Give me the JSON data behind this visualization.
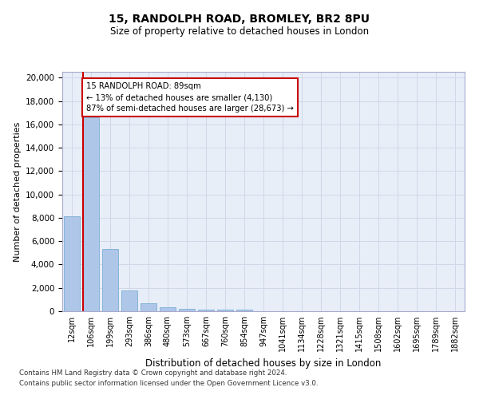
{
  "title_line1": "15, RANDOLPH ROAD, BROMLEY, BR2 8PU",
  "title_line2": "Size of property relative to detached houses in London",
  "xlabel": "Distribution of detached houses by size in London",
  "ylabel": "Number of detached properties",
  "categories": [
    "12sqm",
    "106sqm",
    "199sqm",
    "293sqm",
    "386sqm",
    "480sqm",
    "573sqm",
    "667sqm",
    "760sqm",
    "854sqm",
    "947sqm",
    "1041sqm",
    "1134sqm",
    "1228sqm",
    "1321sqm",
    "1415sqm",
    "1508sqm",
    "1602sqm",
    "1695sqm",
    "1789sqm",
    "1882sqm"
  ],
  "values": [
    8100,
    16600,
    5300,
    1800,
    650,
    330,
    200,
    160,
    160,
    130,
    0,
    0,
    0,
    0,
    0,
    0,
    0,
    0,
    0,
    0,
    0
  ],
  "bar_color": "#aec6e8",
  "bar_edge_color": "#7aafd4",
  "vline_color": "#cc0000",
  "vline_bar_index": 1,
  "annotation_text": "15 RANDOLPH ROAD: 89sqm\n← 13% of detached houses are smaller (4,130)\n87% of semi-detached houses are larger (28,673) →",
  "annotation_box_facecolor": "#ffffff",
  "annotation_box_edgecolor": "#cc0000",
  "ylim": [
    0,
    20500
  ],
  "yticks": [
    0,
    2000,
    4000,
    6000,
    8000,
    10000,
    12000,
    14000,
    16000,
    18000,
    20000
  ],
  "grid_color": "#d0d8e8",
  "bg_color": "#e8eef8",
  "footnote_line1": "Contains HM Land Registry data © Crown copyright and database right 2024.",
  "footnote_line2": "Contains public sector information licensed under the Open Government Licence v3.0."
}
